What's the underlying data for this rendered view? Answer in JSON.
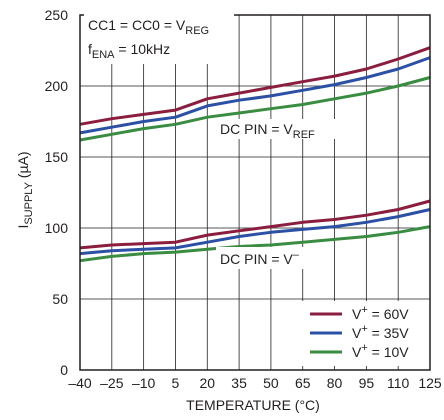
{
  "chart_data": {
    "type": "line",
    "xlabel": "TEMPERATURE (°C)",
    "ylabel": {
      "main": "I",
      "sub": "SUPPLY",
      "unit": " (µA)"
    },
    "xlim": [
      -40,
      125
    ],
    "ylim": [
      0,
      250
    ],
    "x_ticks": [
      -40,
      -25,
      -10,
      5,
      20,
      35,
      50,
      65,
      80,
      95,
      110,
      125
    ],
    "x_tick_labels": [
      "–40",
      "–25",
      "–10",
      "5",
      "20",
      "35",
      "50",
      "65",
      "80",
      "95",
      "110",
      "125"
    ],
    "y_ticks": [
      0,
      50,
      100,
      150,
      200,
      250
    ],
    "y_tick_labels": [
      "0",
      "50",
      "100",
      "150",
      "200",
      "250"
    ],
    "grid": true,
    "legend_placement": "bottom-right",
    "annotations": {
      "cond1": {
        "main": "CC1 = CC0 = V",
        "sub": "REG"
      },
      "cond2": {
        "pre": "f",
        "sub": "ENA",
        "post": " = 10kHz"
      },
      "upper_group": {
        "main": "DC PIN = V",
        "sub": "REF"
      },
      "lower_group": {
        "main": "DC PIN = V",
        "sup": "–"
      }
    },
    "series": [
      {
        "name": "V+ = 60V",
        "label_main": "V",
        "label_sup": "+",
        "label_rest": " = 60V",
        "color": "#8b1e3f",
        "group": "DC PIN = VREF",
        "x": [
          -40,
          -25,
          -10,
          5,
          20,
          35,
          50,
          65,
          80,
          95,
          110,
          125
        ],
        "y": [
          173,
          177,
          180,
          183,
          191,
          195,
          199,
          203,
          207,
          212,
          219,
          227
        ]
      },
      {
        "name": "V+ = 35V",
        "label_main": "V",
        "label_sup": "+",
        "label_rest": " = 35V",
        "color": "#2b50a4",
        "group": "DC PIN = VREF",
        "x": [
          -40,
          -25,
          -10,
          5,
          20,
          35,
          50,
          65,
          80,
          95,
          110,
          125
        ],
        "y": [
          167,
          171,
          175,
          178,
          186,
          190,
          193,
          197,
          201,
          206,
          212,
          220
        ]
      },
      {
        "name": "V+ = 10V",
        "label_main": "V",
        "label_sup": "+",
        "label_rest": " = 10V",
        "color": "#3a8c42",
        "group": "DC PIN = VREF",
        "x": [
          -40,
          -25,
          -10,
          5,
          20,
          35,
          50,
          65,
          80,
          95,
          110,
          125
        ],
        "y": [
          162,
          166,
          170,
          173,
          178,
          181,
          184,
          187,
          191,
          195,
          200,
          206
        ]
      },
      {
        "name": "V+ = 60V",
        "label_main": "V",
        "label_sup": "+",
        "label_rest": " = 60V",
        "color": "#8b1e3f",
        "group": "DC PIN = V-",
        "show_in_legend": false,
        "x": [
          -40,
          -25,
          -10,
          5,
          20,
          35,
          50,
          65,
          80,
          95,
          110,
          125
        ],
        "y": [
          86,
          88,
          89,
          90,
          95,
          98,
          101,
          104,
          106,
          109,
          113,
          119
        ]
      },
      {
        "name": "V+ = 35V",
        "label_main": "V",
        "label_sup": "+",
        "label_rest": " = 35V",
        "color": "#2b50a4",
        "group": "DC PIN = V-",
        "show_in_legend": false,
        "x": [
          -40,
          -25,
          -10,
          5,
          20,
          35,
          50,
          65,
          80,
          95,
          110,
          125
        ],
        "y": [
          82,
          84,
          85,
          86,
          90,
          94,
          97,
          99,
          101,
          104,
          108,
          113
        ]
      },
      {
        "name": "V+ = 10V",
        "label_main": "V",
        "label_sup": "+",
        "label_rest": " = 10V",
        "color": "#3a8c42",
        "group": "DC PIN = V-",
        "show_in_legend": false,
        "x": [
          -40,
          -25,
          -10,
          5,
          20,
          35,
          50,
          65,
          80,
          95,
          110,
          125
        ],
        "y": [
          77,
          80,
          82,
          83,
          85,
          87,
          88,
          90,
          92,
          94,
          97,
          101
        ]
      }
    ]
  }
}
